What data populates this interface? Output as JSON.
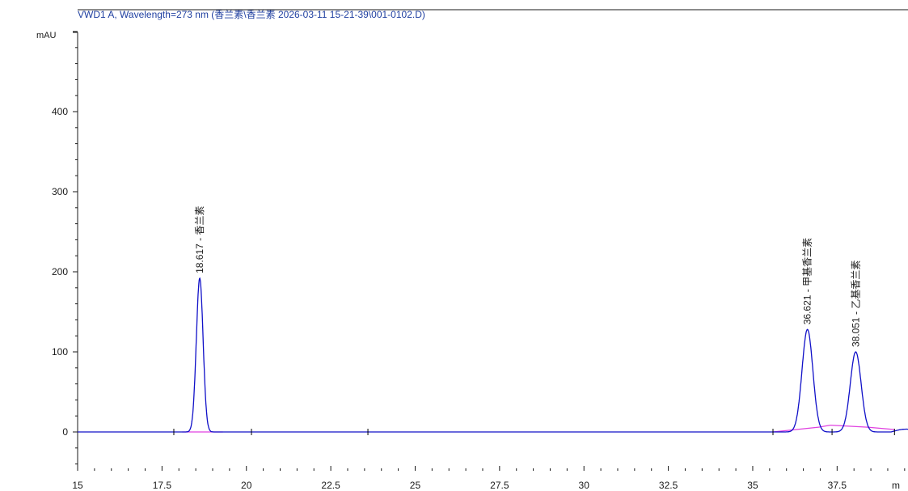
{
  "chart_data": {
    "type": "line",
    "title": "VWD1 A, Wavelength=273 nm (香兰素\\香兰素 2026-03-11 15-21-39\\001-0102.D)",
    "ylabel": "mAU",
    "xlabel": "m",
    "xlim": [
      15,
      39.6
    ],
    "ylim": [
      -50,
      500
    ],
    "x_ticks": [
      "15",
      "17.5",
      "20",
      "22.5",
      "25",
      "27.5",
      "30",
      "32.5",
      "35",
      "37.5"
    ],
    "y_ticks": [
      "0",
      "100",
      "200",
      "300",
      "400"
    ],
    "grid": false,
    "series": [
      {
        "color": "#1010c8",
        "baseline_level": 0,
        "peaks": [
          {
            "rt": 18.617,
            "height": 192,
            "sigma": 0.1
          },
          {
            "rt": 36.621,
            "height": 128,
            "sigma": 0.16
          },
          {
            "rt": 38.051,
            "height": 100,
            "sigma": 0.16
          }
        ]
      }
    ],
    "baseline": {
      "color": "#e040e0",
      "segments": [
        [
          [
            18.1,
            0
          ],
          [
            19.3,
            0
          ]
        ],
        [
          [
            35.6,
            0
          ],
          [
            36.95,
            6
          ],
          [
            37.3,
            8.5
          ]
        ],
        [
          [
            37.3,
            8.5
          ],
          [
            38.4,
            6
          ],
          [
            39.2,
            3
          ]
        ]
      ]
    },
    "peak_labels": [
      {
        "rt": 18.617,
        "text": "18.617 - 香兰素"
      },
      {
        "rt": 36.621,
        "text": "36.621 - 甲基香兰素"
      },
      {
        "rt": 38.051,
        "text": "38.051 - 乙基香兰素"
      }
    ]
  }
}
